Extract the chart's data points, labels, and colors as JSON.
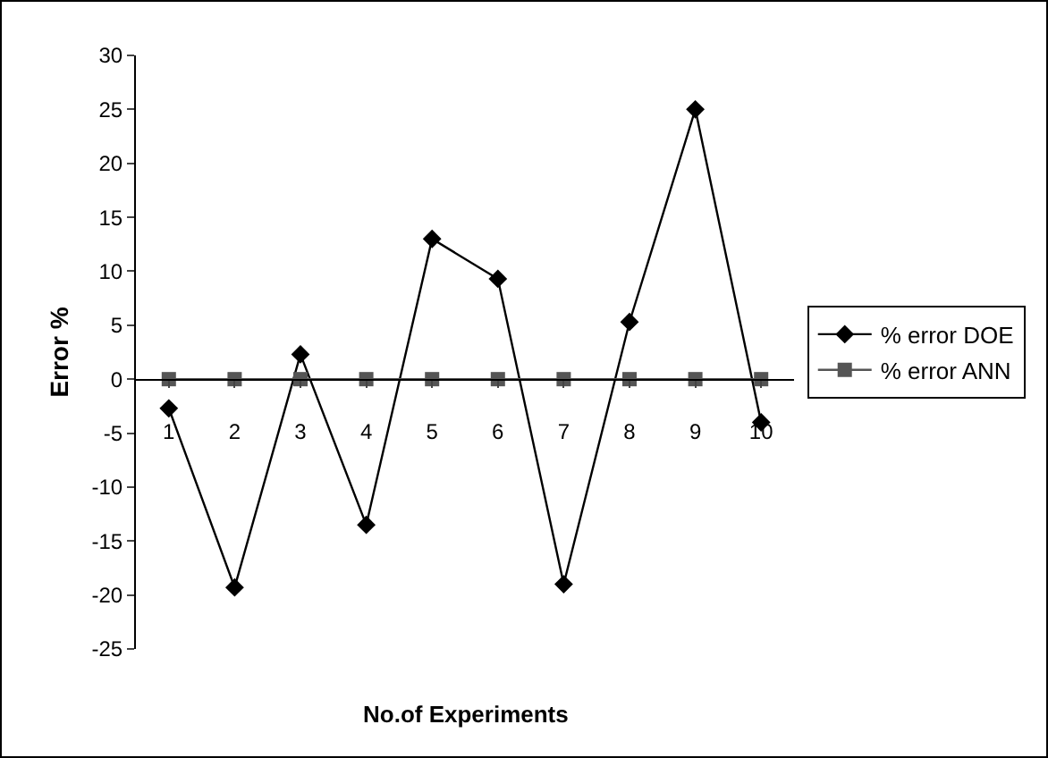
{
  "chart_data": {
    "type": "line",
    "xlabel": "No.of Experiments",
    "ylabel": "Error %",
    "categories": [
      "1",
      "2",
      "3",
      "4",
      "5",
      "6",
      "7",
      "8",
      "9",
      "10"
    ],
    "series": [
      {
        "name": "% error DOE",
        "color": "#000000",
        "marker": "diamond",
        "values": [
          -2.7,
          -19.3,
          2.3,
          -13.5,
          13,
          9.3,
          -19,
          5.3,
          25,
          -4
        ]
      },
      {
        "name": "% error ANN",
        "color": "#555555",
        "marker": "square",
        "values": [
          0,
          0,
          0,
          0,
          0,
          0,
          0,
          0,
          0,
          0
        ]
      }
    ],
    "ylim": [
      -25,
      30
    ],
    "yticks": [
      -25,
      -20,
      -15,
      -10,
      -5,
      0,
      5,
      10,
      15,
      20,
      25,
      30
    ],
    "grid": false,
    "legend": "right",
    "line_style": "solid"
  }
}
